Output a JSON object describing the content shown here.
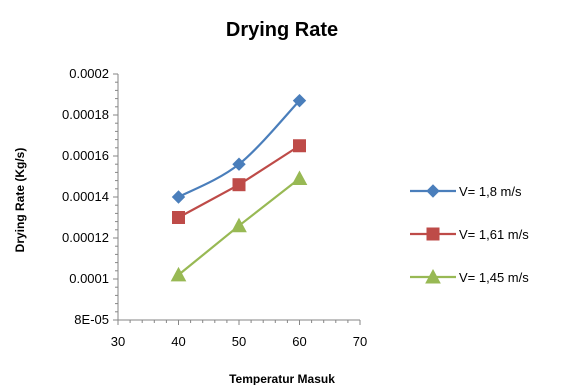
{
  "chart_data": {
    "type": "line",
    "title": "Drying Rate",
    "xlabel": "Temperatur Masuk",
    "ylabel": "Drying Rate (Kg/s)",
    "xlim": [
      30,
      70
    ],
    "ylim": [
      8e-05,
      0.0002
    ],
    "x_ticks": [
      30,
      40,
      50,
      60,
      70
    ],
    "x_tick_labels": [
      "30",
      "40",
      "50",
      "60",
      "70"
    ],
    "y_ticks": [
      8e-05,
      0.0001,
      0.00012,
      0.00014,
      0.00016,
      0.00018,
      0.0002
    ],
    "y_tick_labels": [
      "8E-05",
      "0.0001",
      "0.00012",
      "0.00014",
      "0.00016",
      "0.00018",
      "0.0002"
    ],
    "grid": false,
    "legend_position": "right",
    "x": [
      40,
      50,
      60
    ],
    "series": [
      {
        "name": "V= 1,8 m/s",
        "values": [
          0.00014,
          0.000156,
          0.000187
        ],
        "color": "#4a7ebb",
        "marker": "diamond",
        "smooth": true
      },
      {
        "name": "V= 1,61 m/s",
        "values": [
          0.00013,
          0.000146,
          0.000165
        ],
        "color": "#be4b48",
        "marker": "square",
        "smooth": false
      },
      {
        "name": "V= 1,45 m/s",
        "values": [
          0.000102,
          0.000126,
          0.000149
        ],
        "color": "#98b954",
        "marker": "triangle",
        "smooth": false
      }
    ]
  }
}
